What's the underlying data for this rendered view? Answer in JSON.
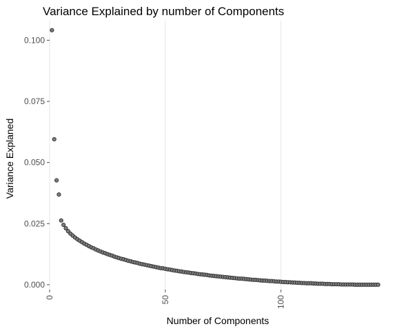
{
  "chart_data": {
    "type": "scatter",
    "title": "Variance Explained by number of Components",
    "xlabel": "Number of Components",
    "ylabel": "Variance Explaned",
    "xlim": [
      0,
      143
    ],
    "ylim": [
      -0.002,
      0.108
    ],
    "x_ticks": [
      0,
      50,
      100
    ],
    "x_tick_labels": [
      "0",
      "50",
      "100"
    ],
    "y_ticks": [
      0.0,
      0.025,
      0.05,
      0.075,
      0.1
    ],
    "y_tick_labels": [
      "0.000",
      "0.025",
      "0.050",
      "0.075",
      "0.100"
    ],
    "grid": "vertical",
    "x": [
      1,
      2,
      3,
      4,
      5,
      6,
      7,
      8,
      9,
      10,
      11,
      12,
      13,
      14,
      15,
      16,
      17,
      18,
      19,
      20,
      21,
      22,
      23,
      24,
      25,
      26,
      27,
      28,
      29,
      30,
      31,
      32,
      33,
      34,
      35,
      36,
      37,
      38,
      39,
      40,
      41,
      42,
      43,
      44,
      45,
      46,
      47,
      48,
      49,
      50,
      51,
      52,
      53,
      54,
      55,
      56,
      57,
      58,
      59,
      60,
      61,
      62,
      63,
      64,
      65,
      66,
      67,
      68,
      69,
      70,
      71,
      72,
      73,
      74,
      75,
      76,
      77,
      78,
      79,
      80,
      81,
      82,
      83,
      84,
      85,
      86,
      87,
      88,
      89,
      90,
      91,
      92,
      93,
      94,
      95,
      96,
      97,
      98,
      99,
      100,
      101,
      102,
      103,
      104,
      105,
      106,
      107,
      108,
      109,
      110,
      111,
      112,
      113,
      114,
      115,
      116,
      117,
      118,
      119,
      120,
      121,
      122,
      123,
      124,
      125,
      126,
      127,
      128,
      129,
      130,
      131,
      132,
      133,
      134,
      135,
      136,
      137,
      138,
      139,
      140,
      141,
      142
    ],
    "values": [
      0.1041,
      0.0595,
      0.0427,
      0.0369,
      0.0263,
      0.0245,
      0.0231,
      0.0219,
      0.0209,
      0.0201,
      0.0193,
      0.0186,
      0.018,
      0.0174,
      0.0168,
      0.0163,
      0.0158,
      0.0153,
      0.0149,
      0.0144,
      0.014,
      0.0136,
      0.0132,
      0.0129,
      0.0125,
      0.0122,
      0.0119,
      0.0115,
      0.0112,
      0.0109,
      0.0106,
      0.0104,
      0.0101,
      0.0098,
      0.0096,
      0.0093,
      0.0091,
      0.0089,
      0.0086,
      0.0084,
      0.0082,
      0.008,
      0.0078,
      0.0076,
      0.0074,
      0.0072,
      0.007,
      0.0068,
      0.0067,
      0.0065,
      0.0063,
      0.0062,
      0.006,
      0.0058,
      0.0057,
      0.0055,
      0.0054,
      0.0052,
      0.0051,
      0.005,
      0.0048,
      0.0047,
      0.0046,
      0.0044,
      0.0043,
      0.0042,
      0.0041,
      0.004,
      0.0038,
      0.0037,
      0.0036,
      0.0035,
      0.0034,
      0.0033,
      0.0032,
      0.0031,
      0.003,
      0.0029,
      0.0028,
      0.0027,
      0.0026,
      0.0025,
      0.0025,
      0.0024,
      0.0023,
      0.0022,
      0.0021,
      0.002,
      0.002,
      0.0019,
      0.0018,
      0.0017,
      0.0017,
      0.0016,
      0.0015,
      0.0015,
      0.0014,
      0.0013,
      0.0013,
      0.0012,
      0.0011,
      0.0011,
      0.001,
      0.001,
      0.0009,
      0.0009,
      0.0008,
      0.0008,
      0.0007,
      0.0007,
      0.0006,
      0.0006,
      0.0006,
      0.0005,
      0.0005,
      0.0004,
      0.0004,
      0.0004,
      0.0003,
      0.0003,
      0.0003,
      0.0002,
      0.0002,
      0.0002,
      0.0002,
      0.0001,
      0.0001,
      0.0001,
      0.0001,
      0.0001,
      0.0001,
      0.0,
      0.0,
      0.0,
      0.0,
      0.0,
      0.0,
      0.0,
      0.0,
      0.0,
      0.0,
      0.0
    ]
  }
}
